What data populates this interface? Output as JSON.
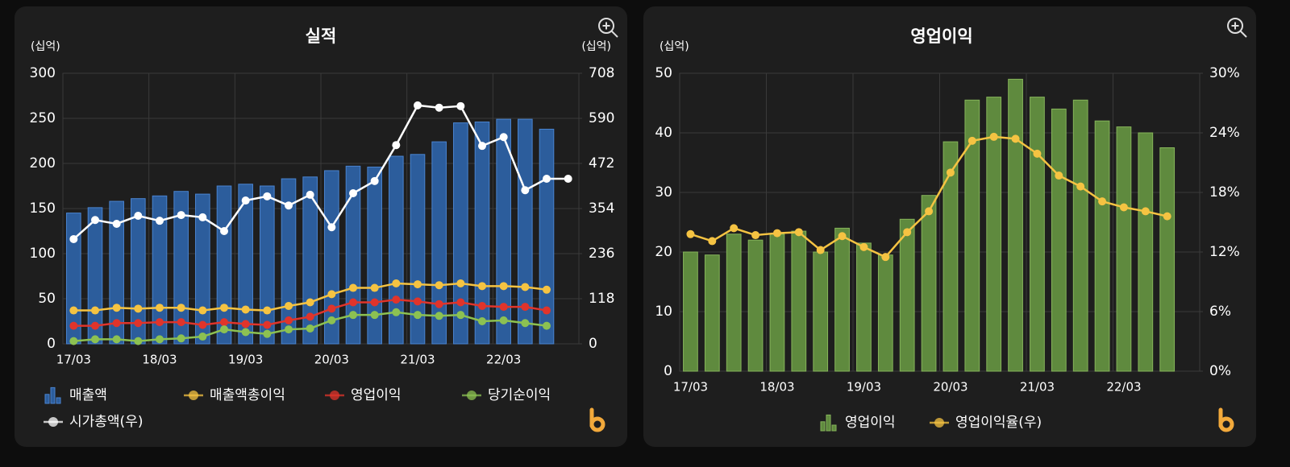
{
  "chart_data": [
    {
      "type": "bar",
      "title": "실적",
      "y_unit": "(십억)",
      "y2_unit": "(십억)",
      "categories": [
        "17/03",
        null,
        null,
        null,
        "18/03",
        null,
        null,
        null,
        "19/03",
        null,
        null,
        null,
        "20/03",
        null,
        null,
        null,
        "21/03",
        null,
        null,
        null,
        "22/03",
        null,
        null,
        null
      ],
      "series": [
        {
          "name": "매출액",
          "type": "bar",
          "color": "#2c5d9c",
          "values": [
            145,
            151,
            158,
            161,
            164,
            169,
            166,
            175,
            177,
            175,
            183,
            185,
            192,
            197,
            196,
            208,
            210,
            224,
            245,
            246,
            249,
            249,
            238,
            null
          ]
        },
        {
          "name": "매출액총이익",
          "type": "line",
          "color": "#f5c342",
          "values": [
            37,
            37,
            40,
            39,
            40,
            40,
            37,
            40,
            38,
            37,
            42,
            46,
            55,
            62,
            62,
            67,
            66,
            65,
            67,
            64,
            64,
            63,
            60,
            null
          ]
        },
        {
          "name": "영업이익",
          "type": "line",
          "color": "#e0342b",
          "values": [
            20,
            20,
            23,
            23,
            24,
            24,
            21,
            24,
            22,
            21,
            26,
            30,
            39,
            46,
            46,
            49,
            47,
            44,
            46,
            42,
            41,
            41,
            37,
            null
          ]
        },
        {
          "name": "당기순이익",
          "type": "line",
          "color": "#8cc152",
          "values": [
            3,
            5,
            5,
            3,
            5,
            6,
            8,
            16,
            13,
            11,
            16,
            17,
            26,
            32,
            32,
            35,
            32,
            31,
            32,
            25,
            26,
            23,
            20,
            null
          ]
        },
        {
          "name": "시가총액(우)",
          "type": "line",
          "axis": "y2",
          "color": "#ffffff",
          "values": [
            274,
            324,
            314,
            335,
            322,
            337,
            331,
            295,
            375,
            386,
            362,
            390,
            305,
            394,
            426,
            520,
            624,
            618,
            622,
            518,
            541,
            402,
            432,
            432
          ]
        }
      ],
      "ylim": [
        0,
        300
      ],
      "yticks": [
        0,
        50,
        100,
        150,
        200,
        250,
        300
      ],
      "y2lim": [
        0,
        708
      ],
      "y2ticks": [
        0,
        118,
        236,
        354,
        472,
        590,
        708
      ],
      "grid": true
    },
    {
      "type": "bar",
      "title": "영업이익",
      "y_unit": "(십억)",
      "categories": [
        "17/03",
        null,
        null,
        null,
        "18/03",
        null,
        null,
        null,
        "19/03",
        null,
        null,
        null,
        "20/03",
        null,
        null,
        null,
        "21/03",
        null,
        null,
        null,
        "22/03",
        null,
        null,
        null
      ],
      "series": [
        {
          "name": "영업이익",
          "type": "bar",
          "color": "#5f8a3e",
          "values": [
            20,
            19.5,
            23,
            22,
            23,
            23.5,
            20,
            24,
            21.5,
            19.5,
            25.5,
            29.5,
            38.5,
            45.5,
            46,
            49,
            46,
            44,
            45.5,
            42,
            41,
            40,
            37.5,
            null
          ]
        },
        {
          "name": "영업이익율(우)",
          "type": "line",
          "axis": "y2",
          "color": "#f5c342",
          "values": [
            13.8,
            13.1,
            14.4,
            13.7,
            13.9,
            14.0,
            12.2,
            13.6,
            12.5,
            11.5,
            14.0,
            16.1,
            20.0,
            23.2,
            23.6,
            23.4,
            21.9,
            19.7,
            18.6,
            17.1,
            16.5,
            16.1,
            15.6,
            null
          ]
        }
      ],
      "ylim": [
        0,
        50
      ],
      "yticks": [
        0,
        10,
        20,
        30,
        40,
        50
      ],
      "y2lim": [
        0,
        30
      ],
      "y2ticks": [
        {
          "value": 0,
          "label": "0%"
        },
        {
          "value": 6,
          "label": "6%"
        },
        {
          "value": 12,
          "label": "12%"
        },
        {
          "value": 18,
          "label": "18%"
        },
        {
          "value": 24,
          "label": "24%"
        },
        {
          "value": 30,
          "label": "30%"
        }
      ],
      "grid": true
    }
  ]
}
